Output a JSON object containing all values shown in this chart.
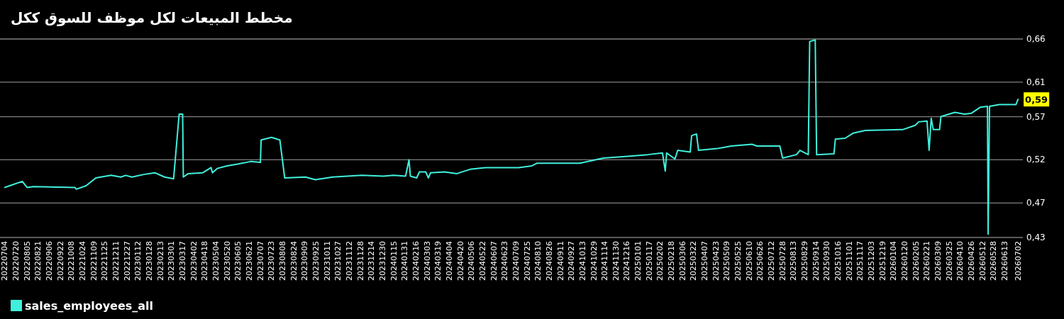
{
  "chart_data": {
    "type": "line",
    "title": "مخطط المبيعات لكل موظف للسوق ككل",
    "legend": "bottom",
    "grid": "y",
    "xlim": [
      "2022-06-27",
      "2026-07-09"
    ],
    "ylim": [
      0.43,
      0.66
    ],
    "yticks": [
      {
        "value": 0.43,
        "label": "0,43"
      },
      {
        "value": 0.47,
        "label": "0,47"
      },
      {
        "value": 0.52,
        "label": "0,52"
      },
      {
        "value": 0.57,
        "label": "0,57"
      },
      {
        "value": 0.61,
        "label": "0,61"
      },
      {
        "value": 0.66,
        "label": "0,66"
      }
    ],
    "xticks": [
      {
        "value": "2022-07-04",
        "label": "20220704"
      },
      {
        "value": "2022-07-20",
        "label": "20220720"
      },
      {
        "value": "2022-08-05",
        "label": "20220805"
      },
      {
        "value": "2022-08-21",
        "label": "20220821"
      },
      {
        "value": "2022-09-06",
        "label": "20220906"
      },
      {
        "value": "2022-09-22",
        "label": "20220922"
      },
      {
        "value": "2022-10-08",
        "label": "20221008"
      },
      {
        "value": "2022-10-24",
        "label": "20221024"
      },
      {
        "value": "2022-11-09",
        "label": "20221109"
      },
      {
        "value": "2022-11-25",
        "label": "20221125"
      },
      {
        "value": "2022-12-11",
        "label": "20221211"
      },
      {
        "value": "2022-12-27",
        "label": "20221227"
      },
      {
        "value": "2023-01-12",
        "label": "20230112"
      },
      {
        "value": "2023-01-28",
        "label": "20230128"
      },
      {
        "value": "2023-02-13",
        "label": "20230213"
      },
      {
        "value": "2023-03-01",
        "label": "20230301"
      },
      {
        "value": "2023-03-17",
        "label": "20230317"
      },
      {
        "value": "2023-04-02",
        "label": "20230402"
      },
      {
        "value": "2023-04-18",
        "label": "20230418"
      },
      {
        "value": "2023-05-04",
        "label": "20230504"
      },
      {
        "value": "2023-05-20",
        "label": "20230520"
      },
      {
        "value": "2023-06-05",
        "label": "20230605"
      },
      {
        "value": "2023-06-21",
        "label": "20230621"
      },
      {
        "value": "2023-07-07",
        "label": "20230707"
      },
      {
        "value": "2023-07-23",
        "label": "20230723"
      },
      {
        "value": "2023-08-08",
        "label": "20230808"
      },
      {
        "value": "2023-08-24",
        "label": "20230824"
      },
      {
        "value": "2023-09-09",
        "label": "20230909"
      },
      {
        "value": "2023-09-25",
        "label": "20230925"
      },
      {
        "value": "2023-10-11",
        "label": "20231011"
      },
      {
        "value": "2023-10-27",
        "label": "20231027"
      },
      {
        "value": "2023-11-12",
        "label": "20231112"
      },
      {
        "value": "2023-11-28",
        "label": "20231128"
      },
      {
        "value": "2023-12-14",
        "label": "20231214"
      },
      {
        "value": "2023-12-30",
        "label": "20231230"
      },
      {
        "value": "2024-01-15",
        "label": "20240115"
      },
      {
        "value": "2024-01-31",
        "label": "20240131"
      },
      {
        "value": "2024-02-16",
        "label": "20240216"
      },
      {
        "value": "2024-03-03",
        "label": "20240303"
      },
      {
        "value": "2024-03-19",
        "label": "20240319"
      },
      {
        "value": "2024-04-04",
        "label": "20240404"
      },
      {
        "value": "2024-04-20",
        "label": "20240420"
      },
      {
        "value": "2024-05-06",
        "label": "20240506"
      },
      {
        "value": "2024-05-22",
        "label": "20240522"
      },
      {
        "value": "2024-06-07",
        "label": "20240607"
      },
      {
        "value": "2024-06-23",
        "label": "20240623"
      },
      {
        "value": "2024-07-09",
        "label": "20240709"
      },
      {
        "value": "2024-07-25",
        "label": "20240725"
      },
      {
        "value": "2024-08-10",
        "label": "20240810"
      },
      {
        "value": "2024-08-26",
        "label": "20240826"
      },
      {
        "value": "2024-09-11",
        "label": "20240911"
      },
      {
        "value": "2024-09-27",
        "label": "20240927"
      },
      {
        "value": "2024-10-13",
        "label": "20241013"
      },
      {
        "value": "2024-10-29",
        "label": "20241029"
      },
      {
        "value": "2024-11-14",
        "label": "20241114"
      },
      {
        "value": "2024-11-30",
        "label": "20241130"
      },
      {
        "value": "2024-12-16",
        "label": "20241216"
      },
      {
        "value": "2025-01-01",
        "label": "20250101"
      },
      {
        "value": "2025-01-17",
        "label": "20250117"
      },
      {
        "value": "2025-02-02",
        "label": "20250202"
      },
      {
        "value": "2025-02-18",
        "label": "20250218"
      },
      {
        "value": "2025-03-06",
        "label": "20250306"
      },
      {
        "value": "2025-03-22",
        "label": "20250322"
      },
      {
        "value": "2025-04-07",
        "label": "20250407"
      },
      {
        "value": "2025-04-23",
        "label": "20250423"
      },
      {
        "value": "2025-05-09",
        "label": "20250509"
      },
      {
        "value": "2025-05-25",
        "label": "20250525"
      },
      {
        "value": "2025-06-10",
        "label": "20250610"
      },
      {
        "value": "2025-06-26",
        "label": "20250626"
      },
      {
        "value": "2025-07-12",
        "label": "20250712"
      },
      {
        "value": "2025-07-28",
        "label": "20250728"
      },
      {
        "value": "2025-08-13",
        "label": "20250813"
      },
      {
        "value": "2025-08-29",
        "label": "20250829"
      },
      {
        "value": "2025-09-14",
        "label": "20250914"
      },
      {
        "value": "2025-09-30",
        "label": "20250930"
      },
      {
        "value": "2025-10-16",
        "label": "20251016"
      },
      {
        "value": "2025-11-01",
        "label": "20251101"
      },
      {
        "value": "2025-11-17",
        "label": "20251117"
      },
      {
        "value": "2025-12-03",
        "label": "20251203"
      },
      {
        "value": "2025-12-19",
        "label": "20251219"
      },
      {
        "value": "2026-01-04",
        "label": "20260104"
      },
      {
        "value": "2026-01-20",
        "label": "20260120"
      },
      {
        "value": "2026-02-05",
        "label": "20260205"
      },
      {
        "value": "2026-02-21",
        "label": "20260221"
      },
      {
        "value": "2026-03-09",
        "label": "20260309"
      },
      {
        "value": "2026-03-25",
        "label": "20260325"
      },
      {
        "value": "2026-04-10",
        "label": "20260410"
      },
      {
        "value": "2026-04-26",
        "label": "20260426"
      },
      {
        "value": "2026-05-12",
        "label": "20260512"
      },
      {
        "value": "2026-05-28",
        "label": "20260528"
      },
      {
        "value": "2026-06-13",
        "label": "20260613"
      },
      {
        "value": "2026-07-02",
        "label": "20260702"
      }
    ],
    "annotations": [
      {
        "text": "0,59",
        "x": "2026-07-02",
        "y": 0.59
      }
    ],
    "series": [
      {
        "name": "sales_employees_all",
        "color": "#3ff0dc",
        "x": [
          "2022-07-04",
          "2022-07-11",
          "2022-07-29",
          "2022-08-05",
          "2022-08-14",
          "2022-10-13",
          "2022-10-15",
          "2022-10-29",
          "2022-11-12",
          "2022-11-19",
          "2022-12-04",
          "2022-12-18",
          "2022-12-25",
          "2023-01-03",
          "2023-01-20",
          "2023-02-05",
          "2023-02-19",
          "2023-03-04",
          "2023-03-12",
          "2023-03-17",
          "2023-03-18",
          "2023-03-25",
          "2023-04-15",
          "2023-04-27",
          "2023-04-29",
          "2023-05-06",
          "2023-05-20",
          "2023-06-04",
          "2023-06-23",
          "2023-07-07",
          "2023-07-08",
          "2023-07-23",
          "2023-08-04",
          "2023-08-11",
          "2023-09-10",
          "2023-09-24",
          "2023-10-19",
          "2023-11-30",
          "2023-12-31",
          "2024-01-15",
          "2024-02-01",
          "2024-02-06",
          "2024-02-08",
          "2024-02-17",
          "2024-02-21",
          "2024-03-01",
          "2024-03-05",
          "2024-03-08",
          "2024-03-28",
          "2024-04-15",
          "2024-05-04",
          "2024-05-26",
          "2024-07-13",
          "2024-08-01",
          "2024-08-08",
          "2024-10-09",
          "2024-11-12",
          "2024-12-17",
          "2025-01-15",
          "2025-02-05",
          "2025-02-09",
          "2025-02-11",
          "2025-02-23",
          "2025-02-27",
          "2025-03-17",
          "2025-03-19",
          "2025-03-26",
          "2025-03-29",
          "2025-04-25",
          "2025-05-15",
          "2025-06-14",
          "2025-06-21",
          "2025-07-24",
          "2025-07-28",
          "2025-08-17",
          "2025-08-22",
          "2025-09-03",
          "2025-09-05",
          "2025-09-13",
          "2025-09-15",
          "2025-10-10",
          "2025-10-12",
          "2025-10-26",
          "2025-11-07",
          "2025-11-24",
          "2026-01-17",
          "2026-02-04",
          "2026-02-09",
          "2026-02-21",
          "2026-02-24",
          "2026-02-27",
          "2026-03-02",
          "2026-03-11",
          "2026-03-13",
          "2026-04-02",
          "2026-04-16",
          "2026-04-26",
          "2026-05-09",
          "2026-05-19",
          "2026-05-20",
          "2026-05-22",
          "2026-06-05",
          "2026-06-29",
          "2026-07-02"
        ],
        "values": [
          0.488,
          0.49,
          0.495,
          0.488,
          0.489,
          0.488,
          0.486,
          0.49,
          0.499,
          0.5,
          0.502,
          0.5,
          0.502,
          0.5,
          0.503,
          0.505,
          0.5,
          0.498,
          0.573,
          0.573,
          0.5,
          0.504,
          0.505,
          0.511,
          0.505,
          0.51,
          0.513,
          0.515,
          0.518,
          0.517,
          0.543,
          0.546,
          0.543,
          0.499,
          0.5,
          0.497,
          0.5,
          0.502,
          0.501,
          0.502,
          0.501,
          0.52,
          0.501,
          0.499,
          0.506,
          0.506,
          0.499,
          0.505,
          0.506,
          0.504,
          0.509,
          0.511,
          0.511,
          0.513,
          0.516,
          0.516,
          0.522,
          0.524,
          0.526,
          0.528,
          0.507,
          0.528,
          0.521,
          0.531,
          0.529,
          0.548,
          0.55,
          0.531,
          0.533,
          0.536,
          0.538,
          0.536,
          0.536,
          0.522,
          0.526,
          0.531,
          0.526,
          0.657,
          0.659,
          0.526,
          0.527,
          0.544,
          0.545,
          0.551,
          0.554,
          0.555,
          0.56,
          0.564,
          0.565,
          0.531,
          0.568,
          0.555,
          0.555,
          0.57,
          0.575,
          0.573,
          0.574,
          0.581,
          0.582,
          0.434,
          0.582,
          0.584,
          0.584,
          0.59
        ]
      }
    ]
  }
}
